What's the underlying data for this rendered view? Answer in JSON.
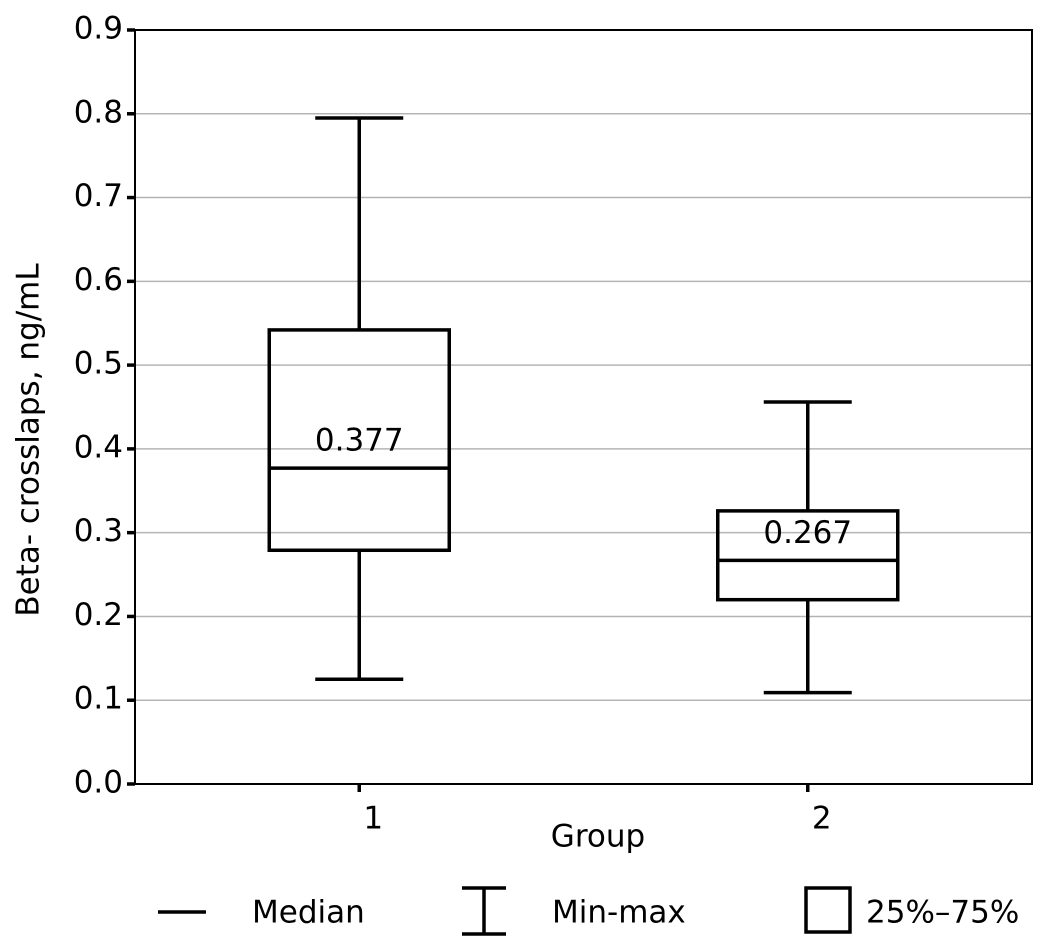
{
  "chart_data": {
    "type": "box",
    "x_label": "Group",
    "y_label": "Beta- crosslaps, ng/mL",
    "categories": [
      "1",
      "2"
    ],
    "min": [
      0.125,
      0.109
    ],
    "q1": [
      0.279,
      0.22
    ],
    "median": [
      0.377,
      0.267
    ],
    "q3": [
      0.542,
      0.326
    ],
    "max": [
      0.795,
      0.456
    ],
    "ylim": [
      0,
      0.9
    ],
    "yticks": [
      {
        "value": 0,
        "label": "0.0"
      },
      0.1,
      0.2,
      0.3,
      0.4,
      0.5,
      0.6,
      0.7,
      0.8,
      0.9
    ],
    "grid": true,
    "legend_labels": [
      "Median",
      "Min-max",
      "25%–75%"
    ]
  }
}
